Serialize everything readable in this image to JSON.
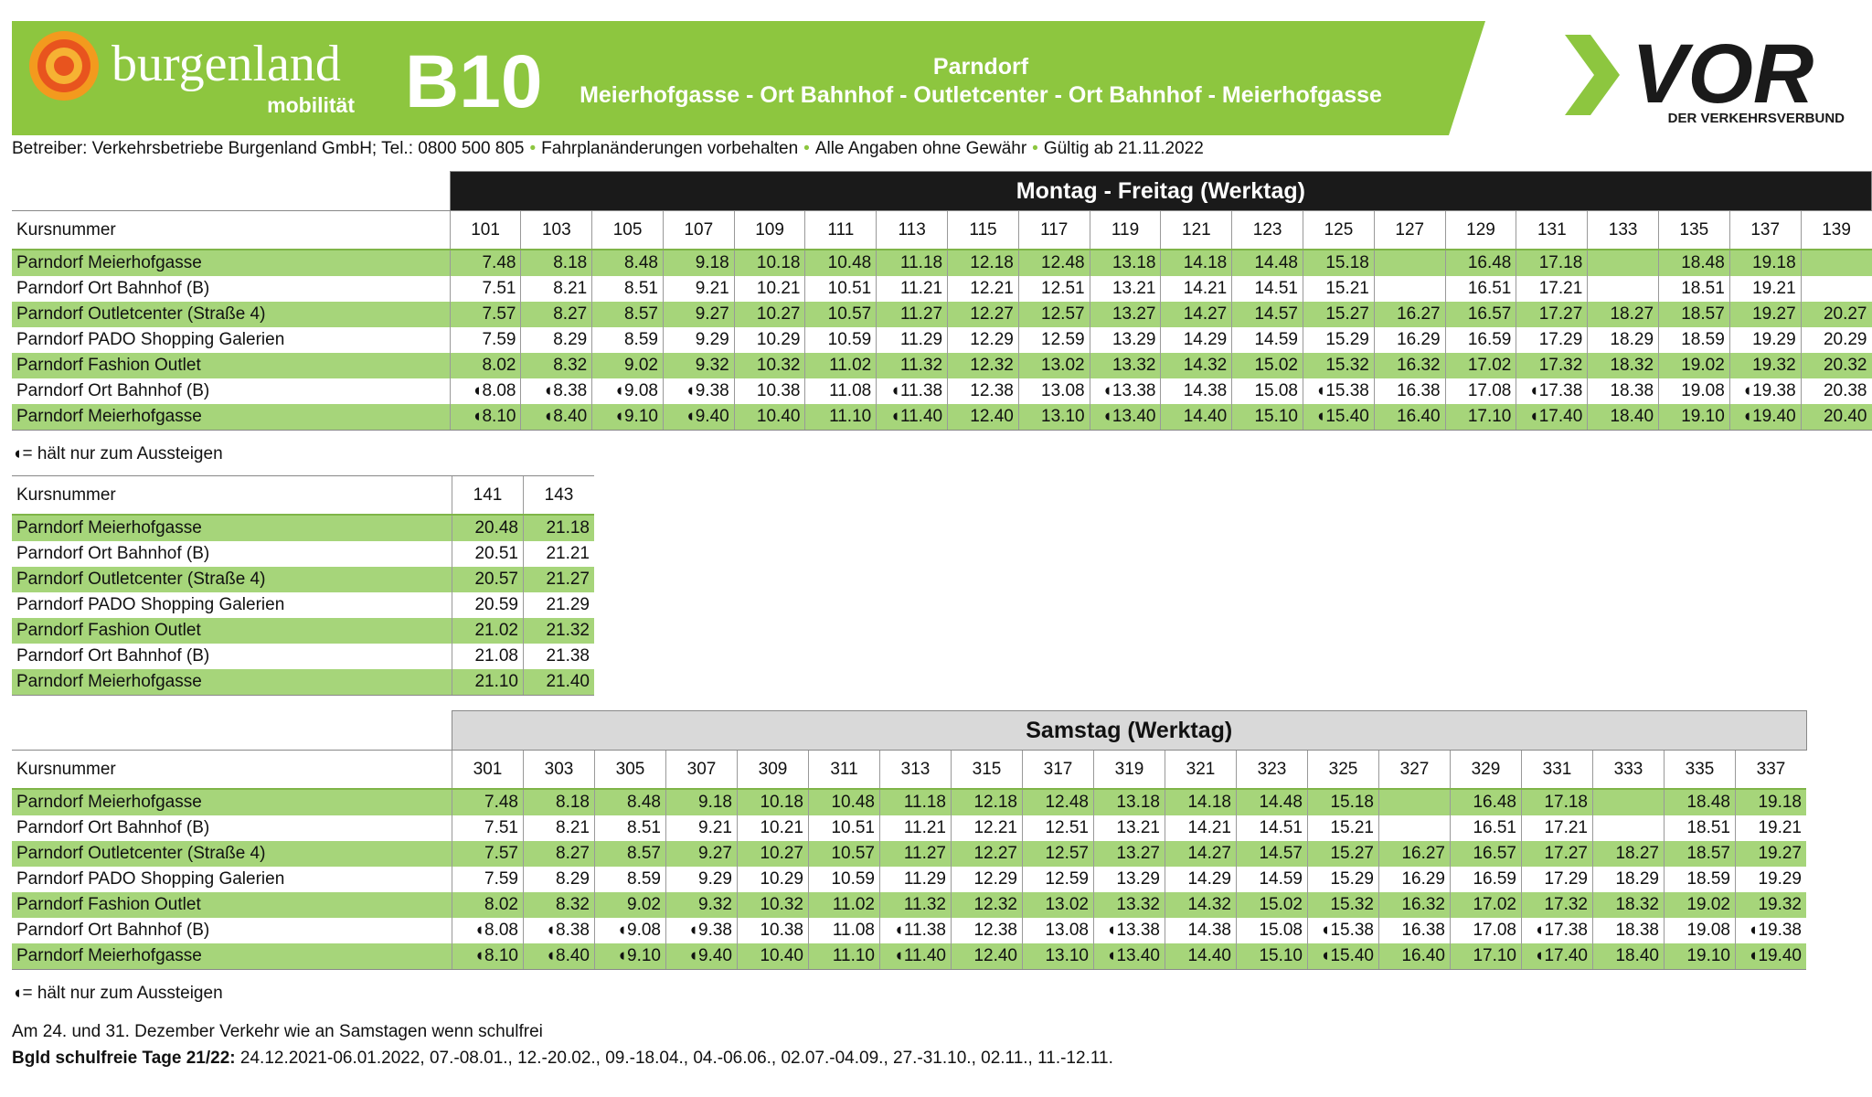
{
  "header": {
    "brand": "burgenland",
    "brand_sub": "mobilität",
    "line": "B10",
    "place": "Parndorf",
    "route": "Meierhofgasse - Ort Bahnhof - Outletcenter - Ort Bahnhof - Meierhofgasse",
    "operator_logo": "VOR",
    "operator_sub": "DER VERKEHRSVERBUND"
  },
  "info": [
    "Betreiber: Verkehrsbetriebe Burgenland GmbH; Tel.: 0800 500 805",
    "Fahrplanänderungen vorbehalten",
    "Alle Angaben ohne Gewähr",
    "Gültig ab 21.11.2022"
  ],
  "timetables": [
    {
      "title": "Montag - Freitag (Werktag)",
      "row_label": "Kursnummer",
      "courses": [
        "101",
        "103",
        "105",
        "107",
        "109",
        "111",
        "113",
        "115",
        "117",
        "119",
        "121",
        "123",
        "125",
        "127",
        "129",
        "131",
        "133",
        "135",
        "137",
        "139"
      ],
      "rows": [
        {
          "stop": "Parndorf Meierhofgasse",
          "times": [
            "7.48",
            "8.18",
            "8.48",
            "9.18",
            "10.18",
            "10.48",
            "11.18",
            "12.18",
            "12.48",
            "13.18",
            "14.18",
            "14.48",
            "15.18",
            null,
            "16.48",
            "17.18",
            null,
            "18.48",
            "19.18",
            null
          ]
        },
        {
          "stop": "Parndorf Ort Bahnhof (B)",
          "times": [
            "7.51",
            "8.21",
            "8.51",
            "9.21",
            "10.21",
            "10.51",
            "11.21",
            "12.21",
            "12.51",
            "13.21",
            "14.21",
            "14.51",
            "15.21",
            null,
            "16.51",
            "17.21",
            null,
            "18.51",
            "19.21",
            null
          ]
        },
        {
          "stop": "Parndorf Outletcenter (Straße 4)",
          "times": [
            "7.57",
            "8.27",
            "8.57",
            "9.27",
            "10.27",
            "10.57",
            "11.27",
            "12.27",
            "12.57",
            "13.27",
            "14.27",
            "14.57",
            "15.27",
            "16.27",
            "16.57",
            "17.27",
            "18.27",
            "18.57",
            "19.27",
            "20.27"
          ]
        },
        {
          "stop": "Parndorf PADO Shopping Galerien",
          "times": [
            "7.59",
            "8.29",
            "8.59",
            "9.29",
            "10.29",
            "10.59",
            "11.29",
            "12.29",
            "12.59",
            "13.29",
            "14.29",
            "14.59",
            "15.29",
            "16.29",
            "16.59",
            "17.29",
            "18.29",
            "18.59",
            "19.29",
            "20.29"
          ]
        },
        {
          "stop": "Parndorf Fashion Outlet",
          "times": [
            "8.02",
            "8.32",
            "9.02",
            "9.32",
            "10.32",
            "11.02",
            "11.32",
            "12.32",
            "13.02",
            "13.32",
            "14.32",
            "15.02",
            "15.32",
            "16.32",
            "17.02",
            "17.32",
            "18.32",
            "19.02",
            "19.32",
            "20.32"
          ]
        },
        {
          "stop": "Parndorf Ort Bahnhof (B)",
          "times": [
            "◖8.08",
            "◖8.38",
            "◖9.08",
            "◖9.38",
            "10.38",
            "11.08",
            "◖11.38",
            "12.38",
            "13.08",
            "◖13.38",
            "14.38",
            "15.08",
            "◖15.38",
            "16.38",
            "17.08",
            "◖17.38",
            "18.38",
            "19.08",
            "◖19.38",
            "20.38"
          ]
        },
        {
          "stop": "Parndorf Meierhofgasse",
          "times": [
            "◖8.10",
            "◖8.40",
            "◖9.10",
            "◖9.40",
            "10.40",
            "11.10",
            "◖11.40",
            "12.40",
            "13.10",
            "◖13.40",
            "14.40",
            "15.10",
            "◖15.40",
            "16.40",
            "17.10",
            "◖17.40",
            "18.40",
            "19.10",
            "◖19.40",
            "20.40"
          ]
        }
      ],
      "legend": "◖= hält nur zum Aussteigen"
    },
    {
      "row_label": "Kursnummer",
      "courses": [
        "141",
        "143"
      ],
      "rows": [
        {
          "stop": "Parndorf Meierhofgasse",
          "times": [
            "20.48",
            "21.18"
          ]
        },
        {
          "stop": "Parndorf Ort Bahnhof (B)",
          "times": [
            "20.51",
            "21.21"
          ]
        },
        {
          "stop": "Parndorf Outletcenter (Straße 4)",
          "times": [
            "20.57",
            "21.27"
          ]
        },
        {
          "stop": "Parndorf PADO Shopping Galerien",
          "times": [
            "20.59",
            "21.29"
          ]
        },
        {
          "stop": "Parndorf Fashion Outlet",
          "times": [
            "21.02",
            "21.32"
          ]
        },
        {
          "stop": "Parndorf Ort Bahnhof (B)",
          "times": [
            "21.08",
            "21.38"
          ]
        },
        {
          "stop": "Parndorf Meierhofgasse",
          "times": [
            "21.10",
            "21.40"
          ]
        }
      ]
    },
    {
      "title": "Samstag (Werktag)",
      "row_label": "Kursnummer",
      "courses": [
        "301",
        "303",
        "305",
        "307",
        "309",
        "311",
        "313",
        "315",
        "317",
        "319",
        "321",
        "323",
        "325",
        "327",
        "329",
        "331",
        "333",
        "335",
        "337"
      ],
      "rows": [
        {
          "stop": "Parndorf Meierhofgasse",
          "times": [
            "7.48",
            "8.18",
            "8.48",
            "9.18",
            "10.18",
            "10.48",
            "11.18",
            "12.18",
            "12.48",
            "13.18",
            "14.18",
            "14.48",
            "15.18",
            null,
            "16.48",
            "17.18",
            null,
            "18.48",
            "19.18"
          ]
        },
        {
          "stop": "Parndorf Ort Bahnhof (B)",
          "times": [
            "7.51",
            "8.21",
            "8.51",
            "9.21",
            "10.21",
            "10.51",
            "11.21",
            "12.21",
            "12.51",
            "13.21",
            "14.21",
            "14.51",
            "15.21",
            null,
            "16.51",
            "17.21",
            null,
            "18.51",
            "19.21"
          ]
        },
        {
          "stop": "Parndorf Outletcenter (Straße 4)",
          "times": [
            "7.57",
            "8.27",
            "8.57",
            "9.27",
            "10.27",
            "10.57",
            "11.27",
            "12.27",
            "12.57",
            "13.27",
            "14.27",
            "14.57",
            "15.27",
            "16.27",
            "16.57",
            "17.27",
            "18.27",
            "18.57",
            "19.27"
          ]
        },
        {
          "stop": "Parndorf PADO Shopping Galerien",
          "times": [
            "7.59",
            "8.29",
            "8.59",
            "9.29",
            "10.29",
            "10.59",
            "11.29",
            "12.29",
            "12.59",
            "13.29",
            "14.29",
            "14.59",
            "15.29",
            "16.29",
            "16.59",
            "17.29",
            "18.29",
            "18.59",
            "19.29"
          ]
        },
        {
          "stop": "Parndorf Fashion Outlet",
          "times": [
            "8.02",
            "8.32",
            "9.02",
            "9.32",
            "10.32",
            "11.02",
            "11.32",
            "12.32",
            "13.02",
            "13.32",
            "14.32",
            "15.02",
            "15.32",
            "16.32",
            "17.02",
            "17.32",
            "18.32",
            "19.02",
            "19.32"
          ]
        },
        {
          "stop": "Parndorf Ort Bahnhof (B)",
          "times": [
            "◖8.08",
            "◖8.38",
            "◖9.08",
            "◖9.38",
            "10.38",
            "11.08",
            "◖11.38",
            "12.38",
            "13.08",
            "◖13.38",
            "14.38",
            "15.08",
            "◖15.38",
            "16.38",
            "17.08",
            "◖17.38",
            "18.38",
            "19.08",
            "◖19.38"
          ]
        },
        {
          "stop": "Parndorf Meierhofgasse",
          "times": [
            "◖8.10",
            "◖8.40",
            "◖9.10",
            "◖9.40",
            "10.40",
            "11.10",
            "◖11.40",
            "12.40",
            "13.10",
            "◖13.40",
            "14.40",
            "15.10",
            "◖15.40",
            "16.40",
            "17.10",
            "◖17.40",
            "18.40",
            "19.10",
            "◖19.40"
          ]
        }
      ],
      "legend": "◖= hält nur zum Aussteigen"
    }
  ],
  "footer": {
    "note": "Am 24. und 31. Dezember Verkehr wie an Samstagen wenn schulfrei",
    "holidays_label": "Bgld schulfreie Tage 21/22:",
    "holidays": "24.12.2021-06.01.2022, 07.-08.01., 12.-20.02., 09.-18.04., 04.-06.06., 02.07.-04.09., 27.-31.10., 02.11., 11.-12.11."
  }
}
